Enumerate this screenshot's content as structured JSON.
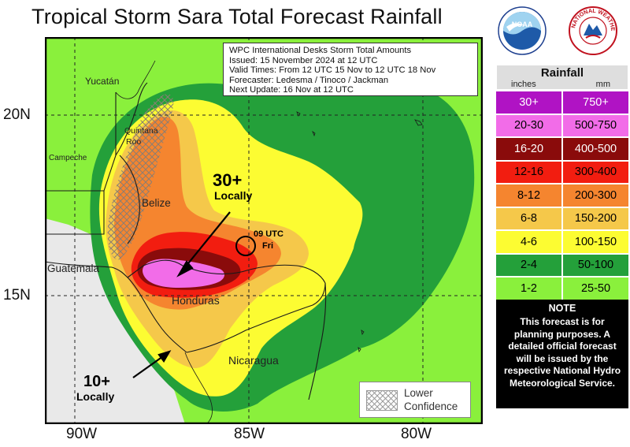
{
  "title": "Tropical Storm Sara Total Forecast Rainfall",
  "logos": {
    "noaa_text": "NOAA",
    "nws_text": "NATIONAL WEATHER SERVICE"
  },
  "info": {
    "line1": "WPC International Desks Storm Total Amounts",
    "line2": "Issued:  15 November 2024 at 12 UTC",
    "line3": "Valid Times:  From 12 UTC 15 Nov  to  12 UTC 18 Nov",
    "line4": "Forecaster:  Ledesma / Tinoco / Jackman",
    "line5": "Next Update: 16 Nov at 12 UTC"
  },
  "axes": {
    "lat": [
      "20N",
      "15N"
    ],
    "lon": [
      "90W",
      "85W",
      "80W"
    ]
  },
  "places": {
    "yucatan": "Yucatán",
    "quintana_roo_1": "Quintana",
    "quintana_roo_2": "Roo",
    "campeche": "Campeche",
    "belize": "Belize",
    "guatemala": "Guatemala",
    "honduras": "Honduras",
    "nicaragua": "Nicaragua"
  },
  "annotations": {
    "locally30_value": "30+",
    "locally30_word": "Locally",
    "locally10_value": "10+",
    "locally10_word": "Locally",
    "position_time": "09 UTC",
    "position_day": "Fri"
  },
  "confidence": {
    "line1": "Lower",
    "line2": "Confidence"
  },
  "legend": {
    "title": "Rainfall",
    "unit_in": "inches",
    "unit_mm": "mm",
    "rows": [
      {
        "inches": "30+",
        "mm": "750+",
        "color": "#b013c4",
        "text_color": "#ffffff"
      },
      {
        "inches": "20-30",
        "mm": "500-750",
        "color": "#f26ce8",
        "text_color": "#000000"
      },
      {
        "inches": "16-20",
        "mm": "400-500",
        "color": "#8a0b0b",
        "text_color": "#ffffff"
      },
      {
        "inches": "12-16",
        "mm": "300-400",
        "color": "#f21d10",
        "text_color": "#000000"
      },
      {
        "inches": "8-12",
        "mm": "200-300",
        "color": "#f5852f",
        "text_color": "#000000"
      },
      {
        "inches": "6-8",
        "mm": "150-200",
        "color": "#f5c84a",
        "text_color": "#000000"
      },
      {
        "inches": "4-6",
        "mm": "100-150",
        "color": "#fcfc32",
        "text_color": "#000000"
      },
      {
        "inches": "2-4",
        "mm": "50-100",
        "color": "#24a03a",
        "text_color": "#000000"
      },
      {
        "inches": "1-2",
        "mm": "25-50",
        "color": "#8af03c",
        "text_color": "#000000"
      }
    ]
  },
  "note": {
    "title": "NOTE",
    "body": "This forecast is for planning purposes. A detailed official forecast will be issued by the respective National Hydro Meteorological Service."
  }
}
